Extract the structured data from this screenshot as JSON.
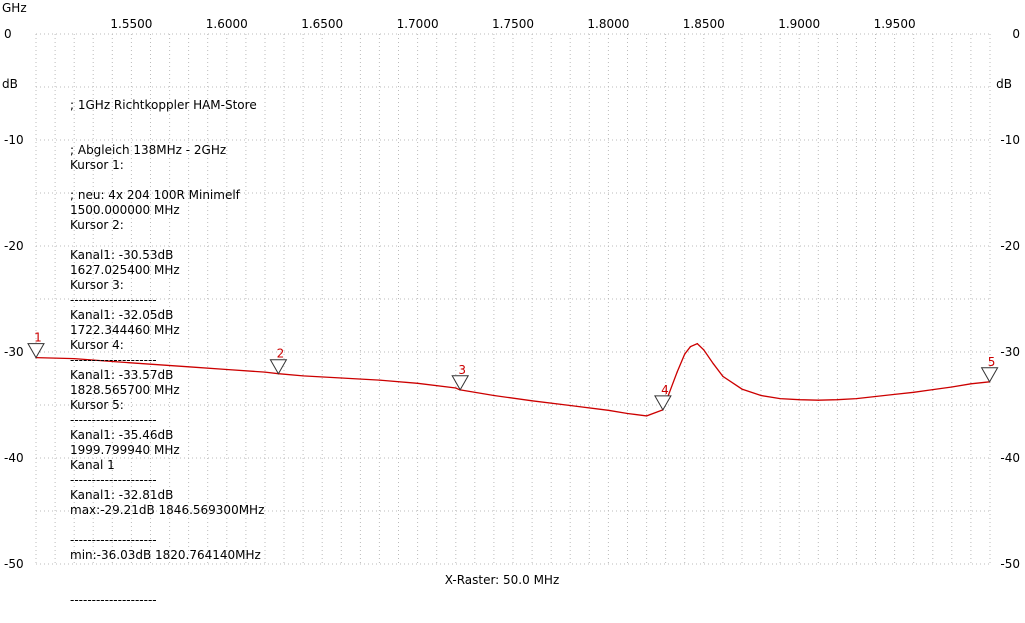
{
  "chart_data": {
    "type": "line",
    "x_unit_label": "GHz",
    "y_unit_label": "dB",
    "xlim": [
      1.5,
      2.0
    ],
    "ylim": [
      -50,
      0
    ],
    "x_ticks": [
      "1.5500",
      "1.6000",
      "1.6500",
      "1.7000",
      "1.7500",
      "1.8000",
      "1.8500",
      "1.9000",
      "1.9500"
    ],
    "x_tick_values": [
      1.55,
      1.6,
      1.65,
      1.7,
      1.75,
      1.8,
      1.85,
      1.9,
      1.95
    ],
    "y_ticks": [
      "0",
      "-10",
      "-20",
      "-30",
      "-40",
      "-50"
    ],
    "y_tick_values": [
      0,
      -10,
      -20,
      -30,
      -40,
      -50
    ],
    "xlabel": "X-Raster: 50.0 MHz",
    "grid": true,
    "line_color": "#cc0000",
    "grid_color": "#bbbbbb",
    "series": [
      {
        "x": [
          1.5,
          1.52,
          1.54,
          1.56,
          1.58,
          1.6,
          1.62,
          1.627,
          1.64,
          1.66,
          1.68,
          1.7,
          1.72,
          1.722,
          1.74,
          1.76,
          1.78,
          1.8,
          1.81,
          1.82,
          1.8285,
          1.832,
          1.836,
          1.84,
          1.843,
          1.8466,
          1.85,
          1.855,
          1.86,
          1.87,
          1.88,
          1.89,
          1.9,
          1.91,
          1.92,
          1.93,
          1.94,
          1.95,
          1.96,
          1.97,
          1.98,
          1.99,
          1.9998
        ],
        "y": [
          -30.53,
          -30.62,
          -30.9,
          -31.15,
          -31.4,
          -31.65,
          -31.9,
          -32.05,
          -32.25,
          -32.45,
          -32.65,
          -32.95,
          -33.4,
          -33.57,
          -34.1,
          -34.6,
          -35.05,
          -35.5,
          -35.8,
          -36.03,
          -35.46,
          -33.8,
          -31.9,
          -30.2,
          -29.5,
          -29.21,
          -29.8,
          -31.1,
          -32.3,
          -33.5,
          -34.1,
          -34.4,
          -34.5,
          -34.55,
          -34.5,
          -34.4,
          -34.2,
          -34.0,
          -33.8,
          -33.55,
          -33.3,
          -33.0,
          -32.81
        ]
      }
    ],
    "markers": [
      {
        "label": "1",
        "x": 1.5,
        "y": -30.53
      },
      {
        "label": "2",
        "x": 1.627025,
        "y": -32.05
      },
      {
        "label": "3",
        "x": 1.722344,
        "y": -33.57
      },
      {
        "label": "4",
        "x": 1.828566,
        "y": -35.46
      },
      {
        "label": "5",
        "x": 1.9998,
        "y": -32.81
      }
    ]
  },
  "annotation": {
    "header": [
      "; 1GHz Richtkoppler HAM-Store",
      "; Abgleich 138MHz - 2GHz",
      "; neu: 4x 204 100R Minimelf"
    ],
    "cursors": [
      {
        "title": "Kursor 1:",
        "freq": "1500.000000 MHz",
        "level": "Kanal1: -30.53dB"
      },
      {
        "title": "Kursor 2:",
        "freq": "1627.025400 MHz",
        "level": "Kanal1: -32.05dB"
      },
      {
        "title": "Kursor 3:",
        "freq": "1722.344460 MHz",
        "level": "Kanal1: -33.57dB"
      },
      {
        "title": "Kursor 4:",
        "freq": "1828.565700 MHz",
        "level": "Kanal1: -35.46dB"
      },
      {
        "title": "Kursor 5:",
        "freq": "1999.799940 MHz",
        "level": "Kanal1: -32.81dB"
      }
    ],
    "channel_title": "Kanal 1",
    "max_text": "max:-29.21dB 1846.569300MHz",
    "min_text": "min:-36.03dB 1820.764140MHz",
    "separator": "--------------------"
  }
}
